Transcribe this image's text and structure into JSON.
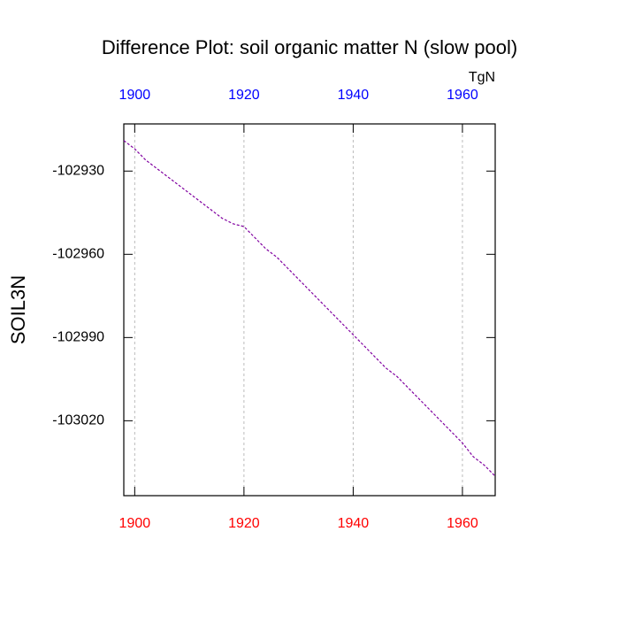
{
  "chart_data": {
    "type": "line",
    "title": "Difference Plot: soil organic matter N (slow pool)",
    "units": "TgN",
    "ylabel": "SOIL3N",
    "x": [
      1898,
      1900,
      1902,
      1904,
      1906,
      1908,
      1910,
      1912,
      1914,
      1916,
      1918,
      1920,
      1922,
      1924,
      1926,
      1928,
      1930,
      1932,
      1934,
      1936,
      1938,
      1940,
      1942,
      1944,
      1946,
      1948,
      1950,
      1952,
      1954,
      1956,
      1958,
      1960,
      1962,
      1964,
      1966
    ],
    "series": [
      {
        "color": "#8000a0",
        "values": [
          -102919,
          -102922,
          -102926,
          -102929,
          -102932,
          -102935,
          -102938,
          -102941,
          -102944,
          -102947,
          -102949,
          -102950,
          -102954,
          -102958,
          -102961,
          -102965,
          -102969,
          -102973,
          -102977,
          -102981,
          -102985,
          -102989,
          -102993,
          -102997,
          -103001,
          -103004,
          -103008,
          -103012,
          -103016,
          -103020,
          -103024,
          -103028,
          -103033,
          -103036,
          -103040
        ]
      }
    ],
    "xlim": [
      1898,
      1966
    ],
    "xticks": [
      1900,
      1920,
      1940,
      1960
    ],
    "ylim": [
      -103047,
      -102913
    ],
    "yticks": [
      -103020,
      -102990,
      -102960,
      -102930
    ],
    "grid": true,
    "bottom_tick_color": "#ff0000",
    "top_tick_color": "#0000ff"
  }
}
